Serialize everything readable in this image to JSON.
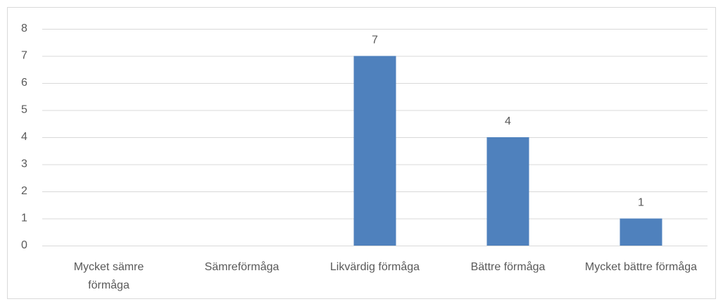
{
  "chart_data": {
    "type": "bar",
    "categories": [
      "Mycket sämre förmåga",
      "Sämreförmåga",
      "Likvärdig förmåga",
      "Bättre förmåga",
      "Mycket bättre förmåga"
    ],
    "values": [
      0,
      0,
      7,
      4,
      1
    ],
    "color": "#4f81bd",
    "ylim": [
      0,
      8
    ],
    "yticks": [
      0,
      1,
      2,
      3,
      4,
      5,
      6,
      7,
      8
    ],
    "grid": true
  }
}
